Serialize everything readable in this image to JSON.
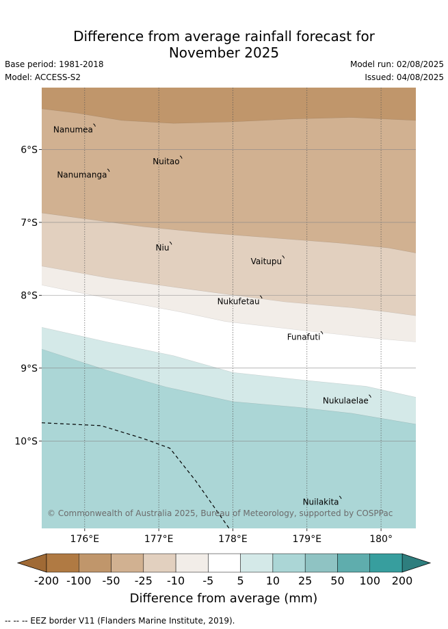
{
  "title": {
    "line1": "Difference from average rainfall forecast for",
    "line2": "November 2025"
  },
  "meta": {
    "base_period": "Base period: 1981-2018",
    "model": "Model: ACCESS-S2",
    "model_run": "Model run: 02/08/2025",
    "issued": "Issued: 04/08/2025"
  },
  "map": {
    "lon_range": [
      175.42,
      180.47
    ],
    "lat_range": [
      -11.2,
      -5.15
    ],
    "lon_ticks": [
      {
        "value": 176,
        "label": "176°E"
      },
      {
        "value": 177,
        "label": "177°E"
      },
      {
        "value": 178,
        "label": "178°E"
      },
      {
        "value": 179,
        "label": "179°E"
      },
      {
        "value": 180,
        "label": "180°"
      }
    ],
    "lat_ticks": [
      {
        "value": -6,
        "label": "6°S"
      },
      {
        "value": -7,
        "label": "7°S"
      },
      {
        "value": -8,
        "label": "8°S"
      },
      {
        "value": -9,
        "label": "9°S"
      },
      {
        "value": -10,
        "label": "10°S"
      }
    ],
    "grid": true,
    "places": [
      {
        "name": "Nanumea",
        "lon": 176.13,
        "lat": -5.67
      },
      {
        "name": "Nuitao",
        "lon": 177.3,
        "lat": -6.11
      },
      {
        "name": "Nanumanga",
        "lon": 176.32,
        "lat": -6.29
      },
      {
        "name": "Niu",
        "lon": 177.16,
        "lat": -7.29
      },
      {
        "name": "Vaitupu",
        "lon": 178.68,
        "lat": -7.48
      },
      {
        "name": "Nukufetau",
        "lon": 178.38,
        "lat": -8.03
      },
      {
        "name": "Funafuti",
        "lon": 179.2,
        "lat": -8.52
      },
      {
        "name": "Nukulaelae",
        "lon": 179.85,
        "lat": -9.39
      },
      {
        "name": "Nuilakita",
        "lon": 179.45,
        "lat": -10.78
      }
    ],
    "zones": [
      {
        "color": "#c0966b",
        "south_boundary": [
          [
            175.42,
            -5.44
          ],
          [
            175.9,
            -5.5
          ],
          [
            176.5,
            -5.6
          ],
          [
            177.2,
            -5.64
          ],
          [
            178,
            -5.62
          ],
          [
            178.8,
            -5.58
          ],
          [
            179.6,
            -5.56
          ],
          [
            180.47,
            -5.6
          ]
        ]
      },
      {
        "color": "#d1b191",
        "south_boundary": [
          [
            175.42,
            -6.87
          ],
          [
            176,
            -6.95
          ],
          [
            176.8,
            -7.06
          ],
          [
            177.6,
            -7.14
          ],
          [
            178.5,
            -7.21
          ],
          [
            179.4,
            -7.28
          ],
          [
            180.1,
            -7.35
          ],
          [
            180.47,
            -7.42
          ]
        ]
      },
      {
        "color": "#e2d0bf",
        "south_boundary": [
          [
            175.42,
            -7.6
          ],
          [
            176.3,
            -7.76
          ],
          [
            177,
            -7.86
          ],
          [
            177.8,
            -7.97
          ],
          [
            178.7,
            -8.09
          ],
          [
            179.6,
            -8.17
          ],
          [
            180.1,
            -8.23
          ],
          [
            180.47,
            -8.28
          ]
        ]
      },
      {
        "color": "#f2ede8",
        "south_boundary": [
          [
            175.42,
            -7.86
          ],
          [
            176.4,
            -8.06
          ],
          [
            177.3,
            -8.23
          ],
          [
            177.9,
            -8.36
          ],
          [
            179,
            -8.49
          ],
          [
            180,
            -8.6
          ],
          [
            180.47,
            -8.64
          ]
        ]
      },
      {
        "color": "#ffffff",
        "south_boundary": [
          [
            175.42,
            -8.44
          ],
          [
            176.3,
            -8.64
          ],
          [
            177.2,
            -8.83
          ],
          [
            178,
            -9.06
          ],
          [
            179,
            -9.17
          ],
          [
            179.8,
            -9.25
          ],
          [
            180.47,
            -9.4
          ]
        ]
      },
      {
        "color": "#d4e9e8",
        "south_boundary": [
          [
            175.42,
            -8.74
          ],
          [
            176.3,
            -9.03
          ],
          [
            177.1,
            -9.26
          ],
          [
            178,
            -9.46
          ],
          [
            178.9,
            -9.54
          ],
          [
            179.6,
            -9.62
          ],
          [
            180.47,
            -9.77
          ]
        ]
      },
      {
        "color": "#abd6d6",
        "south_boundary": [
          [
            175.42,
            -11.2
          ],
          [
            180.47,
            -11.2
          ]
        ]
      }
    ],
    "eez_line": [
      [
        175.42,
        -9.75
      ],
      [
        176.22,
        -9.79
      ],
      [
        176.8,
        -9.97
      ],
      [
        177.15,
        -10.1
      ],
      [
        177.5,
        -10.55
      ],
      [
        177.95,
        -11.2
      ]
    ],
    "copyright": "© Commonwealth of Australia 2025, Bureau of Meteorology, supported by COSPPac"
  },
  "colorbar": {
    "ticks": [
      "-200",
      "-100",
      "-50",
      "-25",
      "-10",
      "-5",
      "5",
      "10",
      "25",
      "50",
      "100",
      "200"
    ],
    "colors": [
      "#b07a43",
      "#c0966b",
      "#d1b191",
      "#e2d0bf",
      "#f2ede8",
      "#ffffff",
      "#d4e9e8",
      "#abd6d6",
      "#8fc3c3",
      "#5fadad",
      "#379e9e"
    ],
    "under_color": "#a06a35",
    "over_color": "#2e7e7e",
    "label": "Difference from average (mm)"
  },
  "footer": {
    "eez_note": "--  --  -- EEZ border V11 (Flanders Marine Institute, 2019)."
  }
}
